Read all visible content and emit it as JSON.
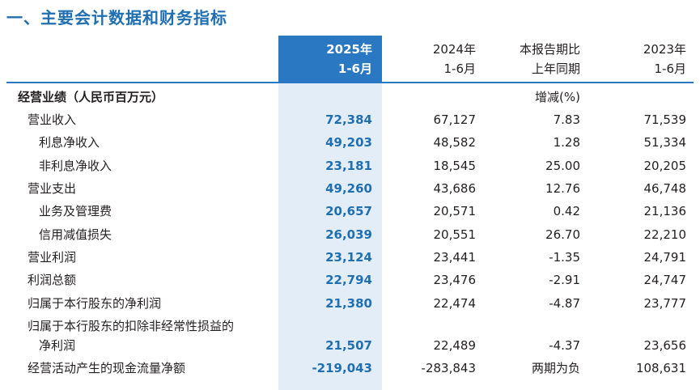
{
  "title": "一、主要会计数据和财务指标",
  "header": {
    "col1": [
      "2025年",
      "1-6月"
    ],
    "col2": [
      "2024年",
      "1-6月"
    ],
    "col3": [
      "本报告期比",
      "上年同期"
    ],
    "col4": [
      "2023年",
      "1-6月"
    ]
  },
  "section": {
    "label": "经营业绩（人民币百万元）",
    "col3_note": "增减(%)"
  },
  "rows": [
    {
      "label": "营业收入",
      "c1": "72,384",
      "c2": "67,127",
      "c3": "7.83",
      "c4": "71,539"
    },
    {
      "label": "利息净收入",
      "c1": "49,203",
      "c2": "48,582",
      "c3": "1.28",
      "c4": "51,334"
    },
    {
      "label": "非利息净收入",
      "c1": "23,181",
      "c2": "18,545",
      "c3": "25.00",
      "c4": "20,205"
    },
    {
      "label": "营业支出",
      "c1": "49,260",
      "c2": "43,686",
      "c3": "12.76",
      "c4": "46,748"
    },
    {
      "label": "业务及管理费",
      "c1": "20,657",
      "c2": "20,571",
      "c3": "0.42",
      "c4": "21,136"
    },
    {
      "label": "信用减值损失",
      "c1": "26,039",
      "c2": "20,551",
      "c3": "26.70",
      "c4": "22,210"
    },
    {
      "label": "营业利润",
      "c1": "23,124",
      "c2": "23,441",
      "c3": "-1.35",
      "c4": "24,791"
    },
    {
      "label": "利润总额",
      "c1": "22,794",
      "c2": "23,476",
      "c3": "-2.91",
      "c4": "24,747"
    },
    {
      "label": "归属于本行股东的净利润",
      "c1": "21,380",
      "c2": "22,474",
      "c3": "-4.87",
      "c4": "23,777"
    },
    {
      "label": "归属于本行股东的扣除非经常性损益的",
      "c1": "",
      "c2": "",
      "c3": "",
      "c4": ""
    },
    {
      "label": "净利润",
      "c1": "21,507",
      "c2": "22,489",
      "c3": "-4.37",
      "c4": "23,656"
    },
    {
      "label": "经营活动产生的现金流量净额",
      "c1": "-219,043",
      "c2": "-283,843",
      "c3": "两期为负",
      "c4": "108,631"
    }
  ]
}
